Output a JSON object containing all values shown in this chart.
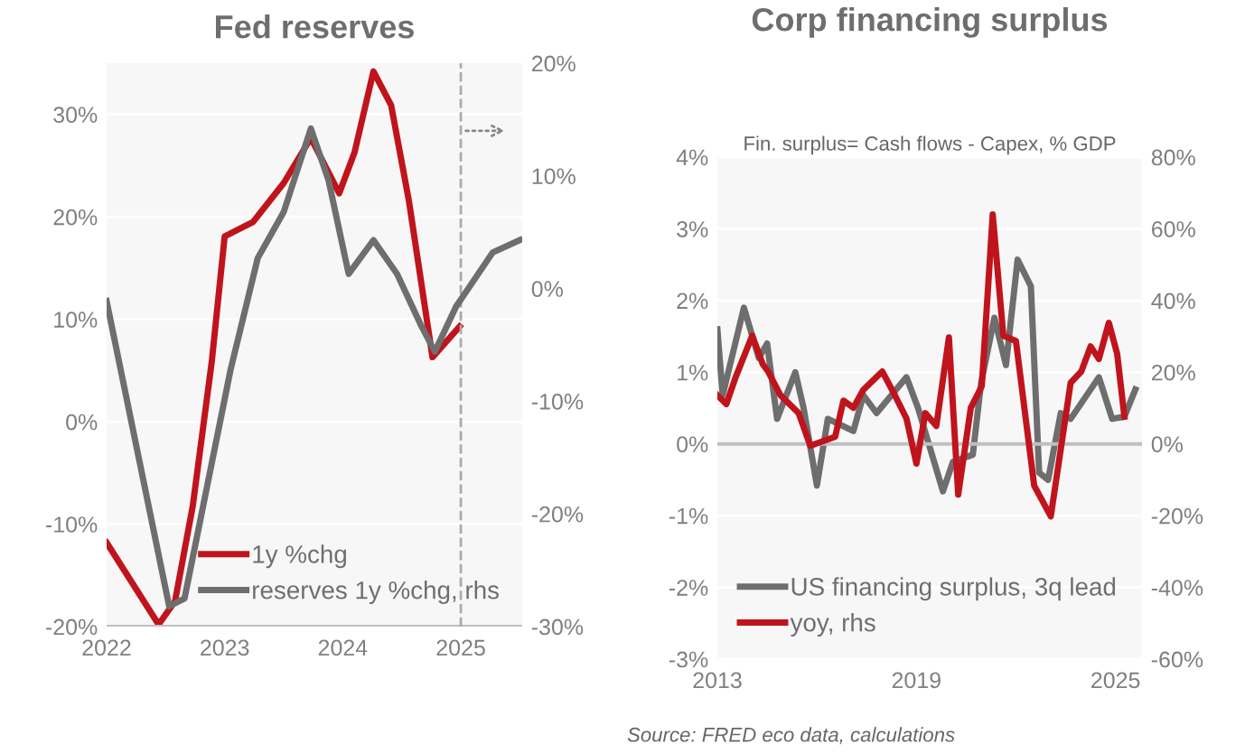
{
  "chart_data": [
    {
      "type": "line",
      "title": "Fed reserves",
      "ylim": [
        -20,
        35
      ],
      "y2lim": [
        -30,
        20
      ],
      "xlim": [
        2022,
        2025.52
      ],
      "xticks": [
        2022,
        2023,
        2024,
        2025
      ],
      "yticks": [
        {
          "value": -20,
          "label": "-20%"
        },
        {
          "value": -10,
          "label": "-10%"
        },
        {
          "value": 0,
          "label": "0%"
        },
        {
          "value": 10,
          "label": "10%"
        },
        {
          "value": 20,
          "label": "20%"
        },
        {
          "value": 30,
          "label": "30%"
        }
      ],
      "y2ticks": [
        {
          "value": -30,
          "label": "-30%"
        },
        {
          "value": -20,
          "label": "-20%"
        },
        {
          "value": -10,
          "label": "-10%"
        },
        {
          "value": 0,
          "label": "0%"
        },
        {
          "value": 10,
          "label": "10%"
        },
        {
          "value": 20,
          "label": "20%"
        }
      ],
      "grid": "y",
      "legend": "bottom right",
      "ref_lines": [
        {
          "axis": "x",
          "value": 2025,
          "color": "#aaaaaa",
          "line_style": "dashed"
        }
      ],
      "series": [
        {
          "name": "1y %chg",
          "color": "#c0141c",
          "x": [
            2022.0,
            2022.44,
            2022.58,
            2022.73,
            2022.89,
            2023.0,
            2023.24,
            2023.5,
            2023.73,
            2023.97,
            2024.1,
            2024.26,
            2024.41,
            2024.56,
            2024.76,
            2024.99
          ],
          "values": [
            -11.8,
            -19.8,
            -17.5,
            -8.2,
            5.8,
            18.1,
            19.5,
            23.3,
            27.7,
            22.3,
            26.3,
            34.2,
            30.9,
            21.6,
            6.3,
            9.3
          ]
        },
        {
          "name": "reserves 1y %chg, rhs",
          "color": "#6e6e6e",
          "axis": "y2",
          "x": [
            2022.0,
            2022.53,
            2022.66,
            2023.05,
            2023.28,
            2023.5,
            2023.73,
            2023.88,
            2024.05,
            2024.26,
            2024.46,
            2024.66,
            2024.78,
            2024.96,
            2025.27,
            2025.5
          ],
          "values": [
            -1.1,
            -28.2,
            -27.5,
            -7.2,
            2.7,
            6.8,
            14.2,
            9.6,
            1.3,
            4.3,
            1.3,
            -3.2,
            -5.6,
            -1.6,
            3.2,
            4.3
          ]
        }
      ]
    },
    {
      "type": "line",
      "title": "Corp financing surplus",
      "subtitle": "Fin. surplus= Cash flows - Capex, % GDP",
      "annotations": [
        "Source: FRED eco data, calculations"
      ],
      "xlim": [
        2013,
        2025.8
      ],
      "xticks": [
        2013,
        2019,
        2025
      ],
      "ylim": [
        -3,
        4
      ],
      "y2lim": [
        -60,
        80
      ],
      "yticks": [
        {
          "value": -3,
          "label": "-3%"
        },
        {
          "value": -2,
          "label": "-2%"
        },
        {
          "value": -1,
          "label": "-1%"
        },
        {
          "value": 0,
          "label": "0%"
        },
        {
          "value": 1,
          "label": "1%"
        },
        {
          "value": 2,
          "label": "2%"
        },
        {
          "value": 3,
          "label": "3%"
        },
        {
          "value": 4,
          "label": "4%"
        }
      ],
      "y2ticks": [
        {
          "value": -60,
          "label": "-60%"
        },
        {
          "value": -40,
          "label": "-40%"
        },
        {
          "value": -20,
          "label": "-20%"
        },
        {
          "value": 0,
          "label": "0%"
        },
        {
          "value": 20,
          "label": "20%"
        },
        {
          "value": 40,
          "label": "40%"
        },
        {
          "value": 60,
          "label": "60%"
        },
        {
          "value": 80,
          "label": "80%"
        }
      ],
      "grid": "y",
      "legend": "bottom left",
      "series": [
        {
          "name": "US financing surplus, 3q lead",
          "color": "#6e6e6e",
          "x": [
            2013.0,
            2013.16,
            2013.8,
            2014.25,
            2014.5,
            2014.8,
            2015.35,
            2015.6,
            2016.0,
            2016.33,
            2017.1,
            2017.4,
            2017.8,
            2018.7,
            2019.05,
            2019.8,
            2020.1,
            2020.7,
            2020.95,
            2021.35,
            2021.7,
            2022.05,
            2022.45,
            2022.7,
            2022.97,
            2023.35,
            2023.65,
            2024.5,
            2024.9,
            2025.27,
            2025.6
          ],
          "values": [
            1.6,
            0.68,
            1.9,
            1.2,
            1.4,
            0.35,
            1.0,
            0.5,
            -0.58,
            0.35,
            0.18,
            0.68,
            0.43,
            0.93,
            0.5,
            -0.66,
            -0.25,
            -0.15,
            0.85,
            1.76,
            1.1,
            2.57,
            2.2,
            -0.4,
            -0.5,
            0.43,
            0.35,
            0.93,
            0.35,
            0.38,
            0.76
          ]
        },
        {
          "name": "yoy, rhs",
          "color": "#c0141c",
          "axis": "y2",
          "x": [
            2013.0,
            2013.27,
            2013.55,
            2014.05,
            2014.37,
            2014.53,
            2014.9,
            2015.45,
            2015.8,
            2016.55,
            2016.8,
            2017.1,
            2017.4,
            2017.97,
            2018.35,
            2018.7,
            2019.0,
            2019.27,
            2019.6,
            2019.98,
            2020.26,
            2020.64,
            2020.97,
            2021.3,
            2021.62,
            2022.0,
            2022.55,
            2023.05,
            2023.65,
            2023.97,
            2024.25,
            2024.5,
            2024.8,
            2025.05,
            2025.27
          ],
          "values": [
            13.6,
            11.1,
            18.6,
            30.2,
            22.2,
            20.2,
            13.6,
            8.6,
            -0.5,
            2.0,
            12.1,
            10.1,
            15.1,
            20.2,
            13.6,
            7.1,
            -5.5,
            8.6,
            5.0,
            29.7,
            -14.1,
            10.1,
            16.1,
            64.0,
            30.2,
            28.7,
            -11.6,
            -20.2,
            17.1,
            20.2,
            27.2,
            23.7,
            33.8,
            25.2,
            7.6
          ]
        }
      ]
    }
  ]
}
